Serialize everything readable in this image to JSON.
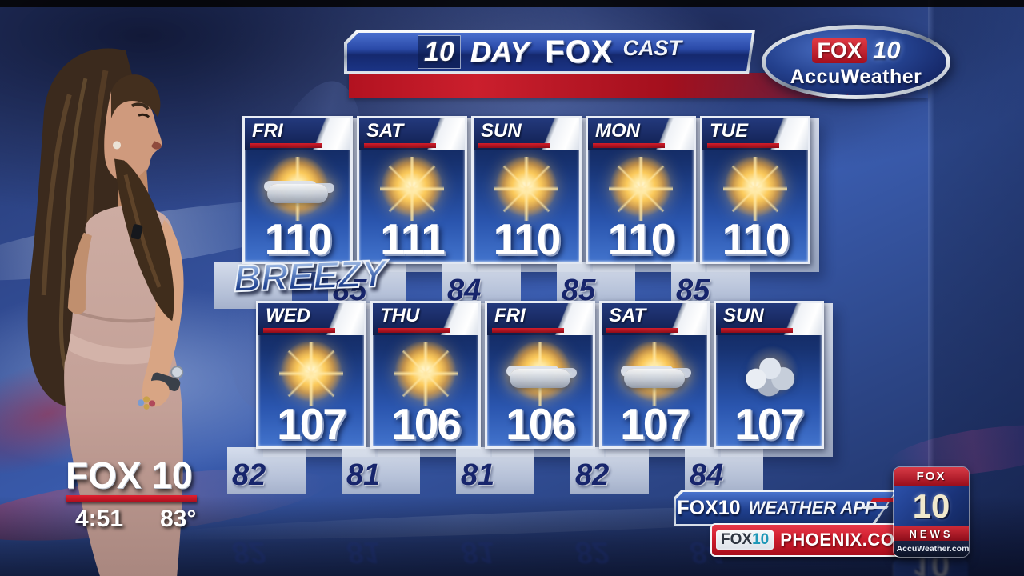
{
  "banner": {
    "ten": "10",
    "day": "DAY",
    "fox": "FOX",
    "cast": "CAST"
  },
  "accuweather_badge": {
    "fox": "FOX",
    "ten": "10",
    "name": "AccuWeather"
  },
  "forecast": {
    "note": "BREEZY",
    "rows": [
      {
        "cards": [
          {
            "day": "FRI",
            "high": "110",
            "low": "",
            "icon": "sun-clouds"
          },
          {
            "day": "SAT",
            "high": "111",
            "low": "85",
            "icon": "sun"
          },
          {
            "day": "SUN",
            "high": "110",
            "low": "84",
            "icon": "sun"
          },
          {
            "day": "MON",
            "high": "110",
            "low": "85",
            "icon": "sun"
          },
          {
            "day": "TUE",
            "high": "110",
            "low": "85",
            "icon": "sun"
          }
        ]
      },
      {
        "cards": [
          {
            "day": "WED",
            "high": "107",
            "low": "82",
            "icon": "sun"
          },
          {
            "day": "THU",
            "high": "106",
            "low": "81",
            "icon": "sun"
          },
          {
            "day": "FRI",
            "high": "106",
            "low": "81",
            "icon": "sun-clouds"
          },
          {
            "day": "SAT",
            "high": "107",
            "low": "82",
            "icon": "sun-clouds"
          },
          {
            "day": "SUN",
            "high": "107",
            "low": "84",
            "icon": "clouds"
          }
        ]
      }
    ]
  },
  "station_bug": {
    "station": "FOX 10",
    "time": "4:51",
    "temp": "83°"
  },
  "promos": {
    "weather_app": {
      "station": "FOX10",
      "label": "WEATHER APP"
    },
    "website": {
      "station_fox": "FOX",
      "station_ten": "10",
      "domain": "PHOENIX.COM"
    },
    "news_badge": {
      "fox": "FOX",
      "ten": "10",
      "news": "NEWS",
      "accu": "AccuWeather.com"
    }
  },
  "colors": {
    "card_navy": "#16306e",
    "card_blue": "#2a55ae",
    "stripe_red": "#b01020",
    "banner_blue": "#2a4aa8",
    "accent_red": "#c81a28",
    "low_navy": "#17256c",
    "backing_silver": "#c2cbdb",
    "sun_gold": "#fbca5c"
  }
}
